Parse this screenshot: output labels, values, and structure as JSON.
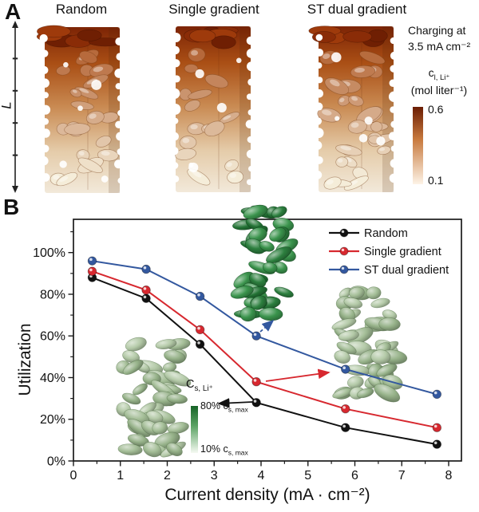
{
  "panel_a": {
    "label": "A",
    "titles": [
      "Random",
      "Single gradient",
      "ST dual gradient"
    ],
    "length_label": "L",
    "annotation_line1": "Charging at",
    "annotation_line2": "3.5 mA cm⁻²",
    "colorbar": {
      "quantity_main": "c",
      "quantity_sub": "l, Li⁺",
      "unit": "(mol liter⁻¹)",
      "max": "0.6",
      "min": "0.1",
      "color_top": "#6b1d03",
      "color_mid": "#c87a3e",
      "color_bottom": "#fdf3e7"
    },
    "structure_colors": {
      "cap": [
        "#6f1f03",
        "#8a2c07",
        "#9e3a0b"
      ],
      "grad": [
        "#7c2405",
        "#aa4f15",
        "#c98a52",
        "#e5ccaa",
        "#f2e9da"
      ],
      "particle_dark": "#b26030",
      "particle_light": "#f5edd9"
    }
  },
  "panel_b": {
    "label": "B",
    "inset_scale": {
      "label_main": "C",
      "label_sub": "s, Li⁺",
      "top_pre": "80% c",
      "top_sub": "s, max",
      "bottom_pre": "10% c",
      "bottom_sub": "s, max",
      "color_top": "#176427",
      "color_mid": "#5aa263",
      "color_bottom": "#f5faf2"
    },
    "insets": {
      "light_particle_colors": [
        "#b3c9a7",
        "#a3bd96",
        "#96b289"
      ],
      "dark_particle_colors": [
        "#3a934c",
        "#2c7f3e",
        "#237335"
      ]
    }
  },
  "chart_data": {
    "type": "line",
    "x": [
      0.4,
      1.55,
      2.7,
      3.9,
      5.8,
      7.75
    ],
    "series": [
      {
        "name": "Random",
        "color": "#111111",
        "values": [
          88,
          78,
          56,
          28,
          16,
          8
        ]
      },
      {
        "name": "Single gradient",
        "color": "#d7282f",
        "values": [
          91,
          82,
          63,
          38,
          25,
          16
        ]
      },
      {
        "name": "ST dual gradient",
        "color": "#33589f",
        "values": [
          96,
          92,
          79,
          60,
          44,
          32
        ]
      }
    ],
    "xlabel": "Current density (mA · cm⁻²)",
    "ylabel": "Utilization",
    "x_ticks": [
      "0",
      "1",
      "2",
      "3",
      "4",
      "5",
      "6",
      "7",
      "8"
    ],
    "y_ticks": [
      "0%",
      "20%",
      "40%",
      "60%",
      "80%",
      "100%"
    ],
    "xlim": [
      0,
      8.3
    ],
    "ylim": [
      0,
      116
    ],
    "grid": false,
    "legend_position": "top-right"
  }
}
